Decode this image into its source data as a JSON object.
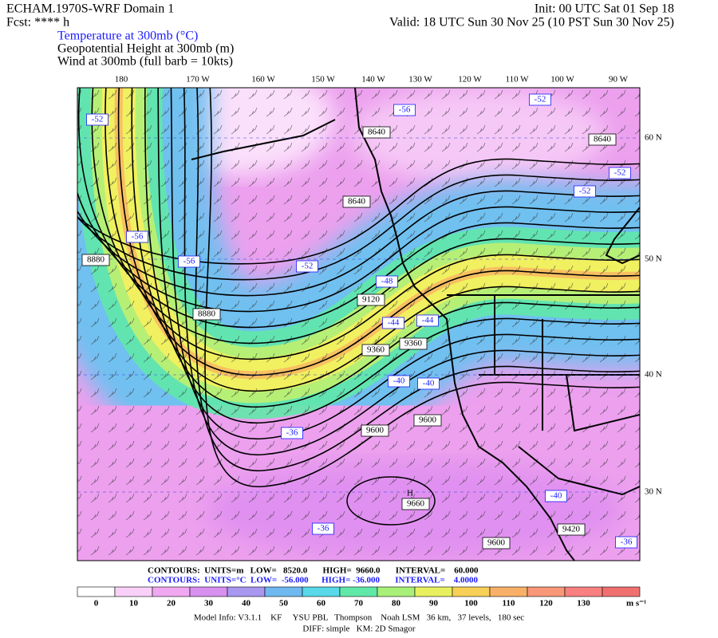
{
  "header": {
    "title": "ECHAM.1970S-WRF Domain 1",
    "fcst": "Fcst: **** h",
    "init": "Init: 00 UTC Sat 01 Sep 18",
    "valid": "Valid: 18 UTC Sun 30 Nov 25 (10 PST Sun 30 Nov 25)",
    "fields": [
      "Temperature at 300mb (°C)",
      "Geopotential Height at 300mb (m)",
      "Wind at 300mb (full barb = 10kts)"
    ]
  },
  "map": {
    "lon_labels": [
      "180",
      "170 W",
      "160 W",
      "150 W",
      "140 W",
      "130 W",
      "120 W",
      "110 W",
      "100 W",
      "90 W"
    ],
    "lat_labels": [
      "60 N",
      "50 N",
      "40 N",
      "30 N"
    ],
    "field_labels": [
      "-52",
      "-56",
      "-52",
      "8640",
      "8640",
      "-52",
      "-52",
      "8640",
      "-56",
      "8880",
      "-56",
      "-52",
      "-48",
      "9120",
      "8880",
      "-44",
      "-44",
      "9360",
      "9360",
      "-40",
      "-40",
      "9600",
      "9600",
      "-36",
      "H",
      "9660",
      "-36",
      "-40",
      "9420",
      "9600",
      "-36"
    ]
  },
  "contour_info": [
    "CONTOURS:  UNITS=m   LOW=   8520.0       HIGH=  9660.0       INTERVAL=    60.000",
    "CONTOURS:  UNITS=°C  LOW=  -56.000      HIGH= -36.000       INTERVAL=    4.0000"
  ],
  "colorbar": {
    "labels": [
      0,
      10,
      20,
      30,
      40,
      50,
      60,
      70,
      80,
      90,
      100,
      110,
      120,
      130
    ],
    "unit": "m s⁻¹",
    "colors": [
      "#ffffff",
      "#f8d0f8",
      "#f0a8f0",
      "#d890f0",
      "#a898f0",
      "#70b8f0",
      "#58d8e8",
      "#60e8a8",
      "#a8f078",
      "#e8f060",
      "#f8d058",
      "#f8b068",
      "#f89878",
      "#f88080",
      "#f07070"
    ]
  },
  "footer": [
    "Model Info: V3.1.1    KF     YSU PBL   Thompson    Noah LSM   36 km,   37 levels,   180 sec",
    "DIFF: simple   KM: 2D Smagor"
  ]
}
